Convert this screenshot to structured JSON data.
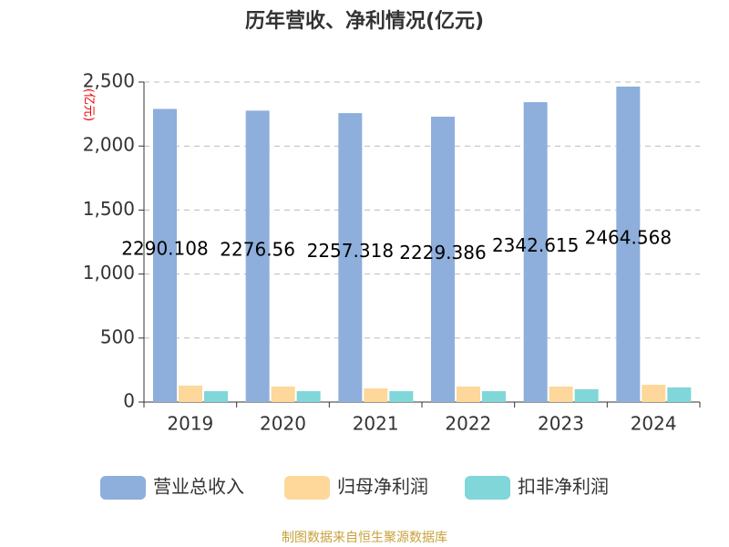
{
  "chart_data": {
    "type": "bar",
    "title": "历年营收、净利情况(亿元)",
    "y_label": "(亿元)",
    "source": "制图数据来自恒生聚源数据库",
    "categories": [
      "2019",
      "2020",
      "2021",
      "2022",
      "2023",
      "2024"
    ],
    "series": [
      {
        "name": "营业总收入",
        "color": "#8eaedc",
        "values": [
          2290.108,
          2276.56,
          2257.318,
          2229.386,
          2342.615,
          2464.568
        ]
      },
      {
        "name": "归母净利润",
        "color": "#fdd89a",
        "values": [
          128,
          121,
          107,
          121,
          121,
          135
        ]
      },
      {
        "name": "扣非净利润",
        "color": "#80d6d8",
        "values": [
          85,
          85,
          85,
          85,
          100,
          114
        ]
      }
    ],
    "ylim": [
      0,
      2500
    ],
    "yticks": [
      0,
      500,
      {
        "value": 1000,
        "label": "1,000"
      },
      {
        "value": 1500,
        "label": "1,500"
      },
      {
        "value": 2000,
        "label": "2,000"
      },
      {
        "value": 2500,
        "label": "2,500"
      }
    ],
    "grid": true
  }
}
